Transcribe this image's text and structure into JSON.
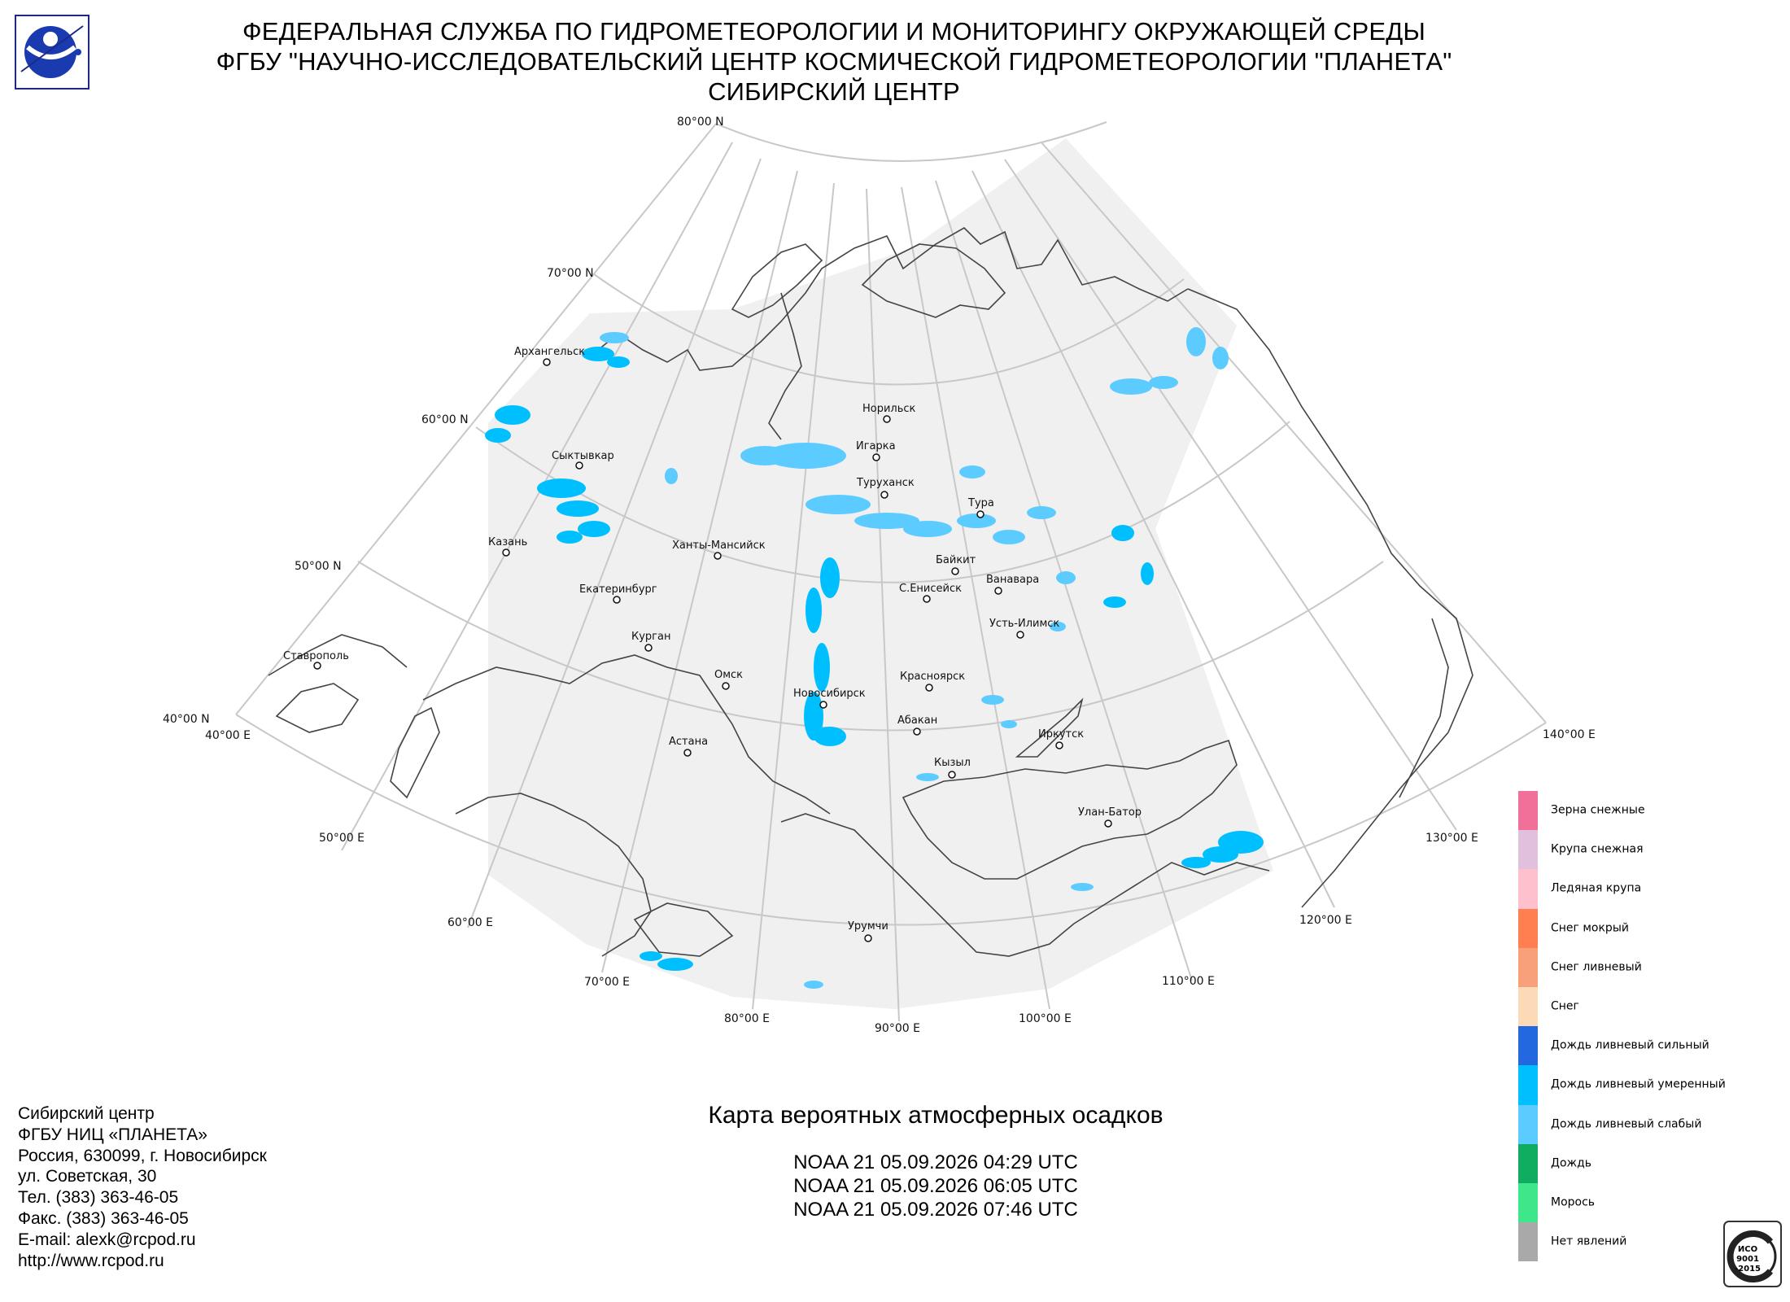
{
  "header": {
    "line1": "ФЕДЕРАЛЬНАЯ СЛУЖБА ПО ГИДРОМЕТЕОРОЛОГИИ И МОНИТОРИНГУ ОКРУЖАЮЩЕЙ СРЕДЫ",
    "line2": "ФГБУ \"НАУЧНО-ИССЛЕДОВАТЕЛЬСКИЙ ЦЕНТР КОСМИЧЕСКОЙ ГИДРОМЕТЕОРОЛОГИИ \"ПЛАНЕТА\"",
    "line3": "СИБИРСКИЙ ЦЕНТР"
  },
  "graticule": {
    "latitudes": [
      "80°00 N",
      "70°00 N",
      "60°00 N",
      "50°00 N",
      "40°00 N"
    ],
    "longitudes": [
      "40°00 E",
      "50°00 E",
      "60°00 E",
      "70°00 E",
      "80°00 E",
      "90°00 E",
      "100°00 E",
      "110°00 E",
      "120°00 E",
      "130°00 E",
      "140°00 E"
    ]
  },
  "cities": [
    {
      "name": "Архангельск"
    },
    {
      "name": "Сыктывкар"
    },
    {
      "name": "Казань"
    },
    {
      "name": "Екатеринбург"
    },
    {
      "name": "Ханты-Мансийск"
    },
    {
      "name": "Курган"
    },
    {
      "name": "Ставрополь"
    },
    {
      "name": "Омск"
    },
    {
      "name": "Астана"
    },
    {
      "name": "Новосибирск"
    },
    {
      "name": "Норильск"
    },
    {
      "name": "Игарка"
    },
    {
      "name": "Туруханск"
    },
    {
      "name": "Тура"
    },
    {
      "name": "Байкит"
    },
    {
      "name": "Ванавара"
    },
    {
      "name": "С.Енисейск"
    },
    {
      "name": "Усть-Илимск"
    },
    {
      "name": "Красноярск"
    },
    {
      "name": "Абакан"
    },
    {
      "name": "Иркутск"
    },
    {
      "name": "Кызыл"
    },
    {
      "name": "Улан-Батор"
    },
    {
      "name": "Урумчи"
    }
  ],
  "map_title": "Карта вероятных атмосферных осадков",
  "passes": [
    "NOAA 21 05.09.2026  04:29 UTC",
    "NOAA 21 05.09.2026  06:05 UTC",
    "NOAA 21 05.09.2026  07:46 UTC"
  ],
  "footer": {
    "line1": "Сибирский центр",
    "line2": "ФГБУ НИЦ «ПЛАНЕТА»",
    "line3": "Россия, 630099, г. Новосибирск",
    "line4": "ул. Советская, 30",
    "line5": "Тел. (383) 363-46-05",
    "line6": "Факс. (383) 363-46-05",
    "line7": "E-mail: alexk@rcpod.ru",
    "line8": "http://www.rcpod.ru"
  },
  "legend": [
    {
      "label": "Зерна снежные",
      "color": "#f0709a"
    },
    {
      "label": "Крупа снежная",
      "color": "#e0c0dc"
    },
    {
      "label": "Ледяная крупа",
      "color": "#fdc0cc"
    },
    {
      "label": "Снег мокрый",
      "color": "#ff7f50"
    },
    {
      "label": "Снег ливневый",
      "color": "#f8a07a"
    },
    {
      "label": "Снег",
      "color": "#fcdab8"
    },
    {
      "label": "Дождь ливневый сильный",
      "color": "#2468e0"
    },
    {
      "label": "Дождь ливневый умеренный",
      "color": "#00bfff"
    },
    {
      "label": "Дождь ливневый слабый",
      "color": "#5ccbff"
    },
    {
      "label": "Дождь",
      "color": "#10ad60"
    },
    {
      "label": "Морось",
      "color": "#3ee88a"
    },
    {
      "label": "Нет явлений",
      "color": "#a9a9a9"
    }
  ],
  "iso_badge": {
    "line1": "ИСО",
    "line2": "9001",
    "line3": "-2015"
  },
  "colors": {
    "coverage": "#f0f0f0",
    "graticule": "#c8c8c8",
    "borders": "#444444",
    "precip": "#00bfff",
    "precip_light": "#5ccbff"
  }
}
